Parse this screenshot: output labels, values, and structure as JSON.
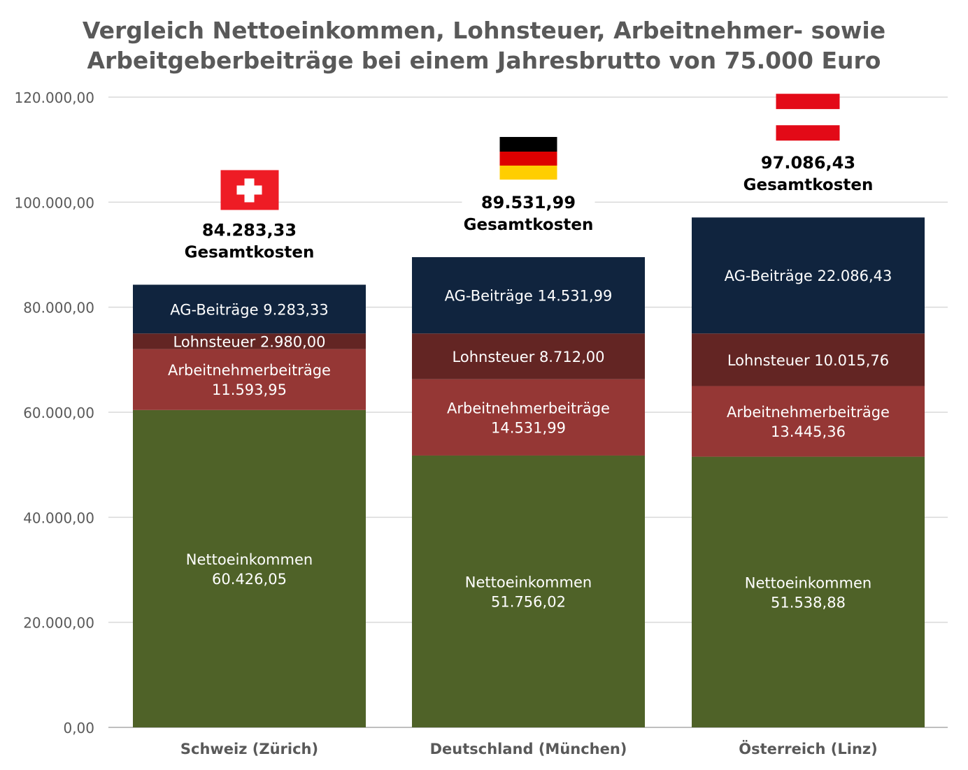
{
  "chart_data": {
    "type": "stacked-bar",
    "title": [
      "Vergleich Nettoeinkommen, Lohnsteuer, Arbeitnehmer- sowie",
      "Arbeitgeberbeiträge bei einem Jahresbrutto von 75.000 Euro"
    ],
    "categories": [
      "Schweiz (Zürich)",
      "Deutschland (München)",
      "Österreich (Linz)"
    ],
    "flags": [
      "switzerland-flag",
      "germany-flag",
      "austria-flag"
    ],
    "ylim": [
      0,
      120000
    ],
    "yticks": [
      0,
      20000,
      40000,
      60000,
      80000,
      100000,
      120000
    ],
    "ytick_labels": [
      "0,00",
      "20.000,00",
      "40.000,00",
      "60.000,00",
      "80.000,00",
      "100.000,00",
      "120.000,00"
    ],
    "grid": true,
    "series": [
      {
        "name": "Nettoeinkommen",
        "color": "#4F6228",
        "values": [
          60426.05,
          51756.02,
          51538.88
        ],
        "labels": [
          [
            "Nettoeinkommen",
            "60.426,05"
          ],
          [
            "Nettoeinkommen",
            "51.756,02"
          ],
          [
            "Nettoeinkommen",
            "51.538,88"
          ]
        ]
      },
      {
        "name": "Arbeitnehmerbeiträge",
        "color": "#953735",
        "values": [
          11593.95,
          14531.99,
          13445.36
        ],
        "labels": [
          [
            "Arbeitnehmerbeiträge",
            "11.593,95"
          ],
          [
            "Arbeitnehmerbeiträge",
            "14.531,99"
          ],
          [
            "Arbeitnehmerbeiträge",
            "13.445,36"
          ]
        ]
      },
      {
        "name": "Lohnsteuer",
        "color": "#632523",
        "values": [
          2980.0,
          8712.0,
          10015.76
        ],
        "labels": [
          [
            "Lohnsteuer 2.980,00"
          ],
          [
            "Lohnsteuer 8.712,00"
          ],
          [
            "Lohnsteuer 10.015,76"
          ]
        ]
      },
      {
        "name": "AG-Beiträge",
        "color": "#10243E",
        "values": [
          9283.33,
          14531.99,
          22086.43
        ],
        "labels": [
          [
            "AG-Beiträge 9.283,33"
          ],
          [
            "AG-Beiträge 14.531,99"
          ],
          [
            "AG-Beiträge 22.086,43"
          ]
        ]
      }
    ],
    "totals": [
      {
        "value": "84.283,33",
        "label": "Gesamtkosten"
      },
      {
        "value": "89.531,99",
        "label": "Gesamtkosten"
      },
      {
        "value": "97.086,43",
        "label": "Gesamtkosten"
      }
    ]
  }
}
